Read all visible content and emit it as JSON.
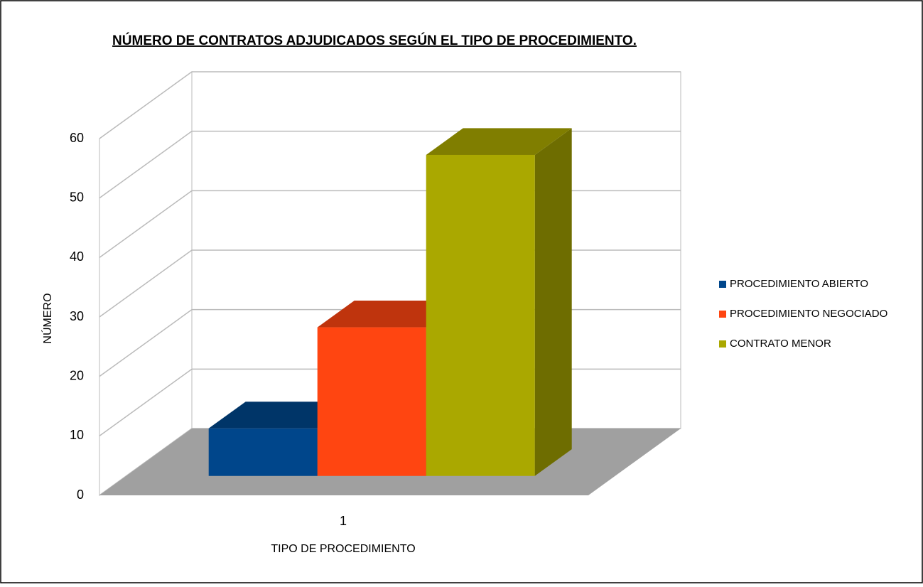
{
  "chart_data": {
    "type": "bar",
    "title": "NÚMERO DE CONTRATOS ADJUDICADOS SEGÚN EL TIPO DE PROCEDIMIENTO.",
    "x_label": "TIPO DE PROCEDIMIENTO",
    "y_label": "NÚMERO",
    "categories": [
      "1"
    ],
    "series": [
      {
        "name": "PROCEDIMIENTO ABIERTO",
        "color": "#00468b",
        "values": [
          8
        ]
      },
      {
        "name": "PROCEDIMIENTO NEGOCIADO",
        "color": "#ff4511",
        "values": [
          25
        ]
      },
      {
        "name": "CONTRATO MENOR",
        "color": "#aaa800",
        "values": [
          54
        ]
      }
    ],
    "ylim": [
      0,
      60
    ],
    "yticks": [
      0,
      10,
      20,
      30,
      40,
      50,
      60
    ],
    "grid": true,
    "legend": "right"
  }
}
